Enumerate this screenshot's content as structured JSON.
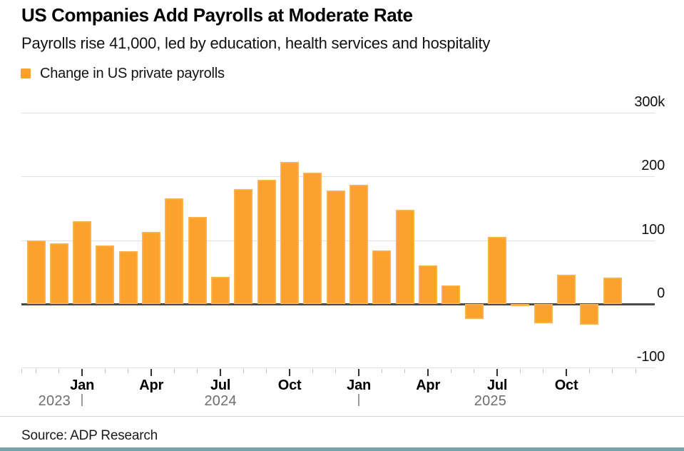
{
  "header": {
    "title": "US Companies Add Payrolls at Moderate Rate",
    "subtitle": "Payrolls rise 41,000, led by education, health services and hospitality"
  },
  "legend": {
    "label": "Change in US private payrolls"
  },
  "footer": {
    "source": "Source: ADP Research"
  },
  "colors": {
    "bar": "#FBA22D",
    "bar_edge": "#FDD094",
    "grid": "#E0E0E0",
    "zero_line": "#4A4A4A",
    "axis_text": "#111111",
    "year_text": "#6E6E6E",
    "year_divider": "#9A9A9A",
    "tick_minor": "#C4C4C4",
    "tick_major": "#2F2F2F",
    "footer_rule": "#D4D4D4",
    "bottom_bar": "#78A2A3"
  },
  "chart_data": {
    "type": "bar",
    "title": "Change in US private payrolls",
    "unit": "thousands of jobs",
    "categories": [
      "Nov 2023",
      "Dec 2023",
      "Jan 2024",
      "Feb 2024",
      "Mar 2024",
      "Apr 2024",
      "May 2024",
      "Jun 2024",
      "Jul 2024",
      "Aug 2024",
      "Sep 2024",
      "Oct 2024",
      "Nov 2024",
      "Dec 2024",
      "Jan 2025",
      "Feb 2025",
      "Mar 2025",
      "Apr 2025",
      "May 2025",
      "Jun 2025",
      "Jul 2025",
      "Aug 2025",
      "Sep 2025",
      "Oct 2025",
      "Nov 2025",
      "Dec 2025"
    ],
    "values": [
      100,
      95,
      130,
      92,
      83,
      113,
      165,
      137,
      42,
      180,
      195,
      223,
      206,
      178,
      187,
      84,
      148,
      60,
      29,
      -23,
      105,
      -3,
      -30,
      46,
      -32,
      41
    ],
    "ylim": [
      -100,
      300
    ],
    "yticks": [
      {
        "value": 300,
        "label": "300k"
      },
      {
        "value": 200,
        "label": "200"
      },
      {
        "value": 100,
        "label": "100"
      },
      {
        "value": 0,
        "label": "0"
      },
      {
        "value": -100,
        "label": "-100"
      }
    ],
    "x_axis": {
      "quarter_labels": [
        "Jan",
        "Apr",
        "Jul",
        "Oct"
      ],
      "years": [
        "2023",
        "2024",
        "2025"
      ]
    },
    "grid": true,
    "legend_position": "top-left"
  }
}
